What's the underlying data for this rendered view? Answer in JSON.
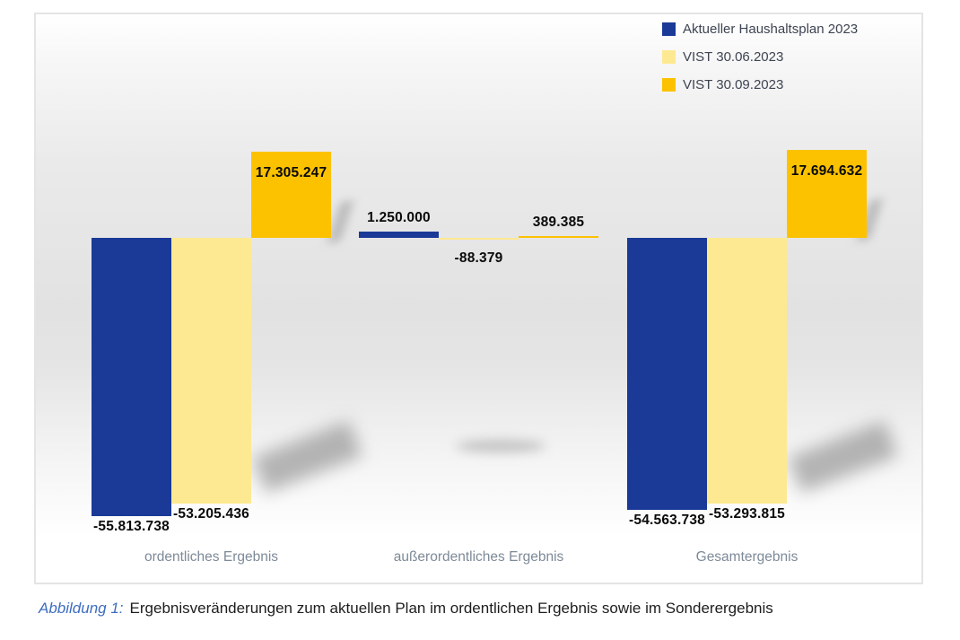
{
  "figure": {
    "caption_label": "Abbildung 1:",
    "caption_text": "Ergebnisveränderungen zum aktuellen Plan im ordentlichen Ergebnis sowie im Sonderergebnis"
  },
  "chart_data": {
    "type": "bar",
    "title": "",
    "xlabel": "",
    "ylabel": "",
    "categories": [
      "ordentliches Ergebnis",
      "außerordentliches Ergebnis",
      "Gesamtergebnis"
    ],
    "series": [
      {
        "name": "Aktueller Haushaltsplan 2023",
        "color": "#1b3a97",
        "values": [
          -55813738,
          1250000,
          -54563738
        ],
        "labels": [
          "-55.813.738",
          "1.250.000",
          "-54.563.738"
        ]
      },
      {
        "name": "VIST 30.06.2023",
        "color": "#fde992",
        "values": [
          -53205436,
          -88379,
          -53293815
        ],
        "labels": [
          "-53.205.436",
          "-88.379",
          "-53.293.815"
        ]
      },
      {
        "name": "VIST 30.09.2023",
        "color": "#fcc200",
        "values": [
          17305247,
          389385,
          17694632
        ],
        "labels": [
          "17.305.247",
          "389.385",
          "17.694.632"
        ]
      }
    ],
    "legend_position": "top-right",
    "grid": false,
    "value_axis_visible": false,
    "ylim": [
      -70000000,
      45000000
    ],
    "number_format": "de-DE, Tausenderpunkt"
  },
  "colors": {
    "plan_blue": "#1b3a97",
    "vist_june_yellow": "#fde992",
    "vist_sept_gold": "#fcc200",
    "category_label": "#7e8a98",
    "caption_accent": "#3e6dbf",
    "frame_border": "#e4e4e4"
  }
}
